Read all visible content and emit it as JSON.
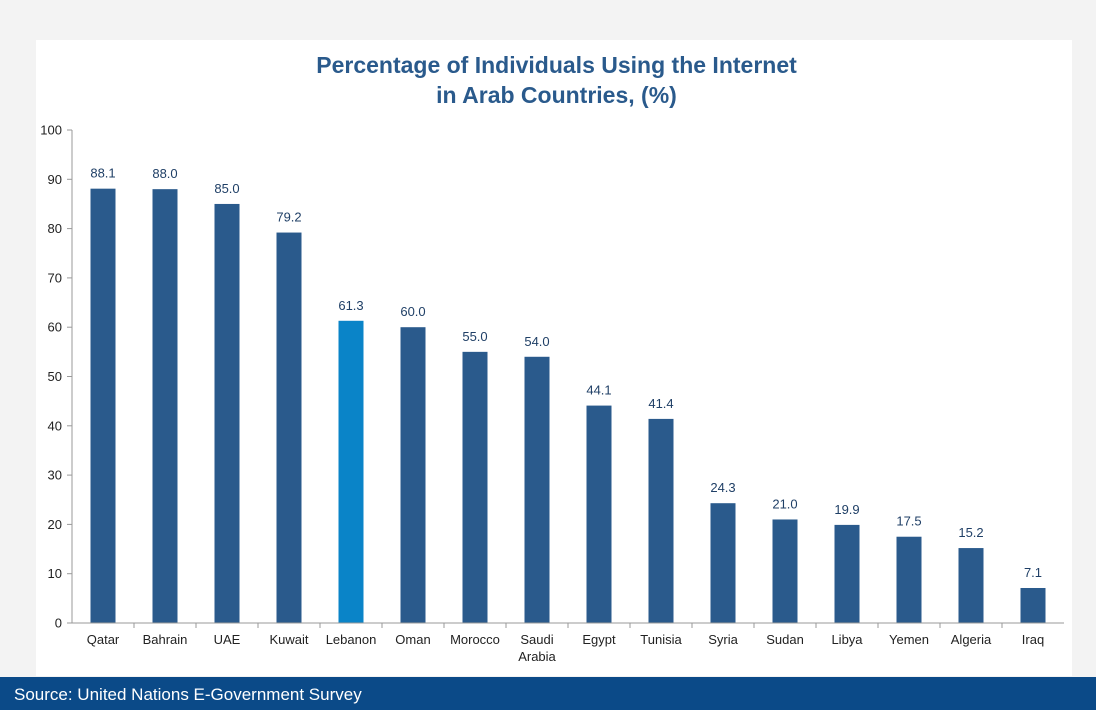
{
  "chart_data": {
    "type": "bar",
    "title_line1": "Percentage of Individuals Using the Internet",
    "title_line2": "in Arab Countries, (%)",
    "categories": [
      "Qatar",
      "Bahrain",
      "UAE",
      "Kuwait",
      "Lebanon",
      "Oman",
      "Morocco",
      "Saudi Arabia",
      "Egypt",
      "Tunisia",
      "Syria",
      "Sudan",
      "Libya",
      "Yemen",
      "Algeria",
      "Iraq"
    ],
    "category_lines": [
      [
        "Qatar"
      ],
      [
        "Bahrain"
      ],
      [
        "UAE"
      ],
      [
        "Kuwait"
      ],
      [
        "Lebanon"
      ],
      [
        "Oman"
      ],
      [
        "Morocco"
      ],
      [
        "Saudi",
        "Arabia"
      ],
      [
        "Egypt"
      ],
      [
        "Tunisia"
      ],
      [
        "Syria"
      ],
      [
        "Sudan"
      ],
      [
        "Libya"
      ],
      [
        "Yemen"
      ],
      [
        "Algeria"
      ],
      [
        "Iraq"
      ]
    ],
    "values": [
      88.1,
      88.0,
      85.0,
      79.2,
      61.3,
      60.0,
      55.0,
      54.0,
      44.1,
      41.4,
      24.3,
      21.0,
      19.9,
      17.5,
      15.2,
      7.1
    ],
    "value_labels": [
      "88.1",
      "88.0",
      "85.0",
      "79.2",
      "61.3",
      "60.0",
      "55.0",
      "54.0",
      "44.1",
      "41.4",
      "24.3",
      "21.0",
      "19.9",
      "17.5",
      "15.2",
      "7.1"
    ],
    "highlight_category": "Lebanon",
    "ylim": [
      0,
      100
    ],
    "yticks": [
      0,
      10,
      20,
      30,
      40,
      50,
      60,
      70,
      80,
      90,
      100
    ],
    "xlabel": "",
    "ylabel": "",
    "grid": false,
    "legend": "none",
    "colors": {
      "bar": "#2a5a8c",
      "highlight": "#0a84c8",
      "title": "#2a5a8c",
      "axis": "#999999"
    }
  },
  "footer": {
    "source": "Source: United Nations E-Government Survey",
    "background": "#0b4a88"
  }
}
